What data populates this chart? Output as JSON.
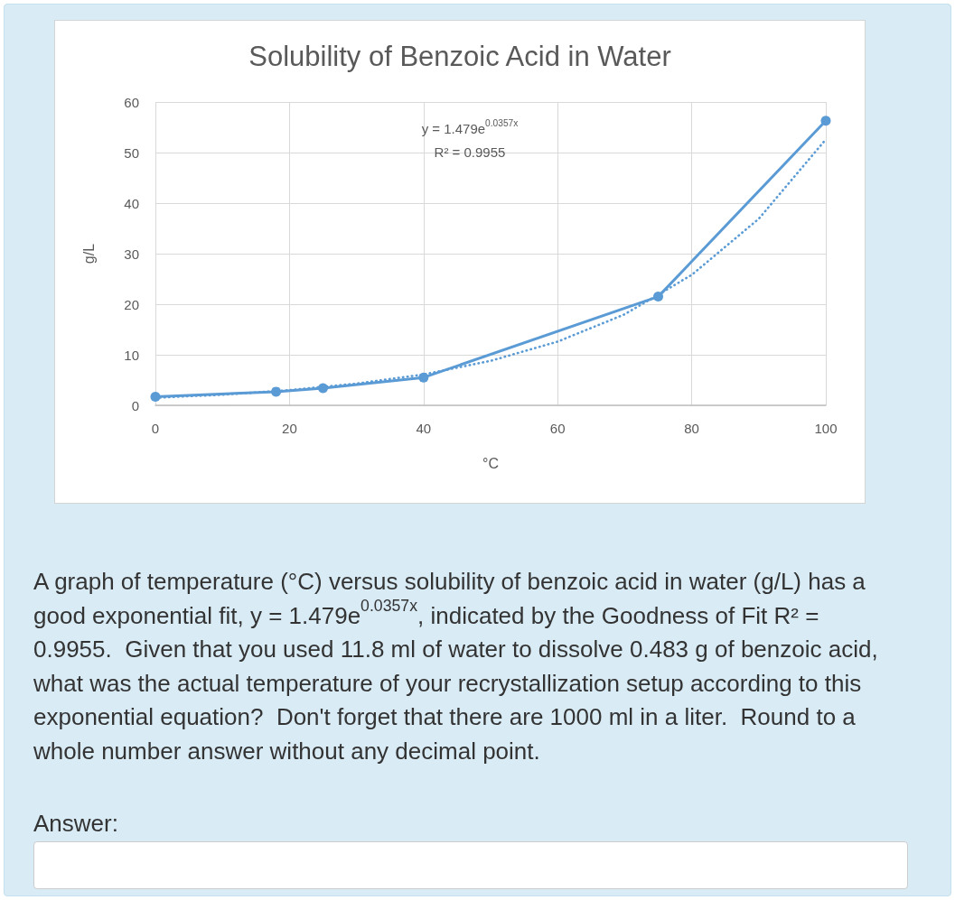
{
  "chart_data": {
    "type": "line",
    "title": "Solubility of Benzoic Acid in Water",
    "xlabel": "°C",
    "ylabel": "g/L",
    "x": [
      0,
      18,
      25,
      40,
      75,
      100
    ],
    "series": [
      {
        "color": "#5b9bd5",
        "values": [
          1.7,
          2.7,
          3.4,
          5.5,
          21.5,
          56.3
        ]
      },
      {
        "type": "line",
        "x": [
          0,
          10,
          20,
          30,
          40,
          50,
          60,
          70,
          80,
          90,
          100
        ],
        "values": [
          1.5,
          2.1,
          3.0,
          4.3,
          6.1,
          8.8,
          12.6,
          18.0,
          25.8,
          36.9,
          52.6
        ],
        "color": "#5b9bd5",
        "line_style": "dotted",
        "marker": "none"
      }
    ],
    "xlim": [
      0,
      100
    ],
    "xticks": [
      0,
      20,
      40,
      60,
      80,
      100
    ],
    "ylim": [
      0,
      60
    ],
    "yticks": [
      0,
      10,
      20,
      30,
      40,
      50,
      60
    ],
    "grid": true,
    "marker": "circle",
    "line_style": "solid",
    "annotations": [
      "y = 1.479e$^{0.0357x}$",
      "R² = 0.9955",
      "A graph of temperature (°C) versus solubility of benzoic acid in water (g/L) has a good exponential fit, y = 1.479e$^{0.0357x}$, indicated by the Goodness of Fit R² = 0.9955.  Given that you used 11.8 ml of water to dissolve 0.483 g of benzoic acid, what was the actual temperature of your recrystallization setup according to this exponential equation?  Don't forget that there are 1000 ml in a liter.  Round to a whole number answer without any decimal point.",
      "Answer:"
    ]
  }
}
